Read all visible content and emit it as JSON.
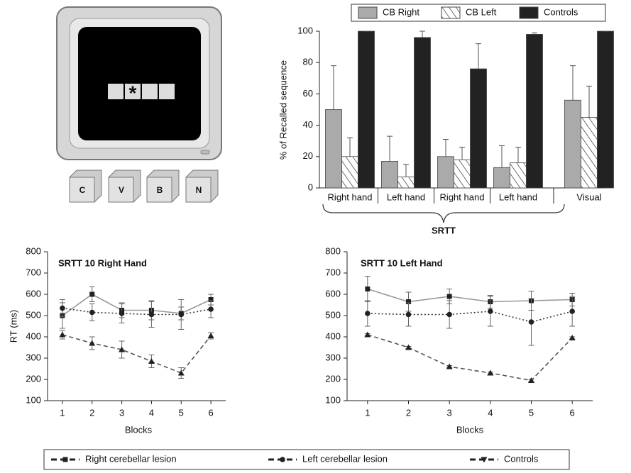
{
  "illustration": {
    "cue": "*",
    "keys": [
      "C",
      "V",
      "B",
      "N"
    ]
  },
  "chart_data": [
    {
      "type": "bar",
      "ylabel": "% of Recalled sequence",
      "group_label": "SRTT",
      "categories": [
        "Right hand",
        "Left hand",
        "Right hand",
        "Left hand",
        "Visual"
      ],
      "ylim": [
        0,
        100
      ],
      "yticks": [
        0,
        20,
        40,
        60,
        80,
        100
      ],
      "legend": "top",
      "series": [
        {
          "name": "CB Right",
          "color": "#aaaaaa",
          "values": [
            50,
            17,
            20,
            13,
            56
          ],
          "errors": [
            28,
            16,
            11,
            14,
            22
          ]
        },
        {
          "name": "CB Left",
          "color": "#ffffff",
          "hatch": true,
          "values": [
            20,
            7,
            18,
            16,
            45
          ],
          "errors": [
            12,
            8,
            8,
            10,
            20
          ]
        },
        {
          "name": "Controls",
          "color": "#222222",
          "values": [
            100,
            96,
            76,
            98,
            100
          ],
          "errors": [
            0,
            4,
            16,
            1,
            0
          ]
        }
      ]
    },
    {
      "type": "line",
      "title": "SRTT 10 Right Hand",
      "xlabel": "Blocks",
      "ylabel": "RT (ms)",
      "x": [
        1,
        2,
        3,
        4,
        5,
        6
      ],
      "xlim": [
        0.5,
        6.5
      ],
      "xticks": [
        1,
        2,
        3,
        4,
        5,
        6
      ],
      "ylim": [
        100,
        800
      ],
      "yticks": [
        100,
        200,
        300,
        400,
        500,
        600,
        700,
        800
      ],
      "legend": "bottom",
      "series": [
        {
          "name": "Right cerebellar lesion",
          "color": "#999999",
          "line_style": "solid",
          "marker": "square",
          "values": [
            500,
            600,
            525,
            525,
            510,
            575
          ],
          "errors": [
            60,
            35,
            35,
            45,
            30,
            25
          ]
        },
        {
          "name": "Left cerebellar lesion",
          "color": "#333333",
          "line_style": "dotted",
          "marker": "circle",
          "values": [
            535,
            515,
            510,
            505,
            505,
            530
          ],
          "errors": [
            40,
            40,
            45,
            60,
            70,
            40
          ]
        },
        {
          "name": "Controls",
          "color": "#555555",
          "line_style": "dashed",
          "marker": "triangle",
          "values": [
            410,
            370,
            340,
            285,
            230,
            405
          ],
          "errors": [
            20,
            30,
            40,
            30,
            25,
            15
          ]
        }
      ]
    },
    {
      "type": "line",
      "title": "SRTT 10 Left Hand",
      "xlabel": "Blocks",
      "x": [
        1,
        2,
        3,
        4,
        5,
        6
      ],
      "xlim": [
        0.5,
        6.5
      ],
      "xticks": [
        1,
        2,
        3,
        4,
        5,
        6
      ],
      "ylim": [
        100,
        800
      ],
      "yticks": [
        100,
        200,
        300,
        400,
        500,
        600,
        700,
        800
      ],
      "series": [
        {
          "color": "#999999",
          "line_style": "solid",
          "marker": "square",
          "values": [
            625,
            565,
            590,
            565,
            570,
            575
          ],
          "errors": [
            60,
            45,
            35,
            30,
            45,
            30
          ]
        },
        {
          "color": "#333333",
          "line_style": "dotted",
          "marker": "circle",
          "values": [
            510,
            505,
            505,
            520,
            470,
            520
          ],
          "errors": [
            60,
            55,
            65,
            70,
            110,
            70
          ]
        },
        {
          "color": "#555555",
          "line_style": "dashed",
          "marker": "triangle",
          "values": [
            410,
            350,
            260,
            230,
            195,
            395
          ],
          "errors": [
            5,
            5,
            5,
            5,
            5,
            5
          ]
        }
      ]
    }
  ]
}
